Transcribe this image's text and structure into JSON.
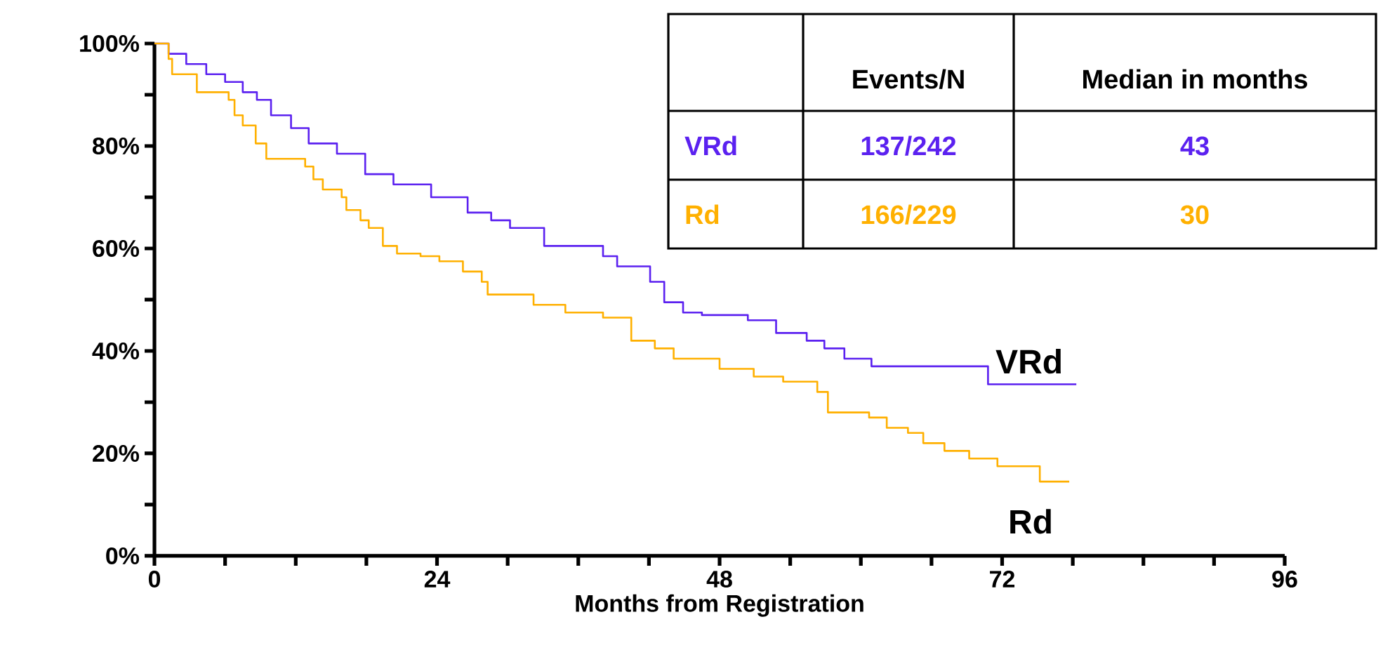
{
  "chart_data": {
    "type": "step",
    "xlabel": "Months from Registration",
    "xlim": [
      0,
      96
    ],
    "ylim": [
      0,
      100
    ],
    "xticks": [
      0,
      {
        "value": 6,
        "label": null
      },
      {
        "value": 12,
        "label": null
      },
      {
        "value": 18,
        "label": null
      },
      24,
      {
        "value": 30,
        "label": null
      },
      {
        "value": 36,
        "label": null
      },
      {
        "value": 42,
        "label": null
      },
      48,
      {
        "value": 54,
        "label": null
      },
      {
        "value": 60,
        "label": null
      },
      {
        "value": 66,
        "label": null
      },
      72,
      {
        "value": 78,
        "label": null
      },
      {
        "value": 84,
        "label": null
      },
      {
        "value": 90,
        "label": null
      },
      96
    ],
    "yticks": [
      {
        "value": 0,
        "label": "0%"
      },
      {
        "value": 10,
        "label": null
      },
      {
        "value": 20,
        "label": "20%"
      },
      {
        "value": 30,
        "label": null
      },
      {
        "value": 40,
        "label": "40%"
      },
      {
        "value": 50,
        "label": null
      },
      {
        "value": 60,
        "label": "60%"
      },
      {
        "value": 70,
        "label": null
      },
      {
        "value": 80,
        "label": "80%"
      },
      {
        "value": 90,
        "label": null
      },
      {
        "value": 100,
        "label": "100%"
      }
    ],
    "grid": false,
    "marker": "none",
    "line_style": "solid",
    "series": [
      {
        "name": "VRd",
        "color": "#5b21f0",
        "x": [
          0,
          1.2,
          2.7,
          4.4,
          6.0,
          7.5,
          8.7,
          9.9,
          11.6,
          13.1,
          15.5,
          17.9,
          20.3,
          23.5,
          26.6,
          28.6,
          30.2,
          33.1,
          38.1,
          39.3,
          42.1,
          43.3,
          44.9,
          46.5,
          50.4,
          52.8,
          55.4,
          56.9,
          58.6,
          60.9,
          70.8,
          78.3
        ],
        "values": [
          100,
          98,
          96,
          94,
          92.5,
          90.5,
          89,
          86,
          83.5,
          80.5,
          78.5,
          74.5,
          72.5,
          70,
          67,
          65.5,
          64,
          60.5,
          58.5,
          56.5,
          53.5,
          49.5,
          47.5,
          47,
          46,
          43.5,
          42,
          40.5,
          38.5,
          37,
          33.5,
          33.5
        ]
      },
      {
        "name": "Rd",
        "color": "#ffb000",
        "x": [
          0,
          1.2,
          1.5,
          3.6,
          6.3,
          6.8,
          7.5,
          8.6,
          9.5,
          12.8,
          13.5,
          14.3,
          15.9,
          16.3,
          17.5,
          18.2,
          19.4,
          20.6,
          22.6,
          24.2,
          26.2,
          27.8,
          28.3,
          32.2,
          34.9,
          38.1,
          40.5,
          42.5,
          44.1,
          48.0,
          50.9,
          53.4,
          56.3,
          57.2,
          60.7,
          62.2,
          64.0,
          65.3,
          67.1,
          69.2,
          71.6,
          75.2,
          77.7
        ],
        "values": [
          100,
          97,
          94,
          90.5,
          89,
          86,
          84,
          80.5,
          77.5,
          76,
          73.5,
          71.5,
          70,
          67.5,
          65.5,
          64,
          60.5,
          59,
          58.5,
          57.5,
          55.5,
          53.5,
          51,
          49,
          47.5,
          46.5,
          42,
          40.5,
          38.5,
          36.5,
          35,
          34,
          32,
          28,
          27,
          25,
          24,
          22,
          20.5,
          19,
          17.5,
          14.5,
          14.5
        ]
      }
    ],
    "annotations": [
      "Events/N",
      "Median in months",
      "VRd",
      "137/242",
      "43",
      "Rd",
      "166/229",
      "30"
    ]
  }
}
